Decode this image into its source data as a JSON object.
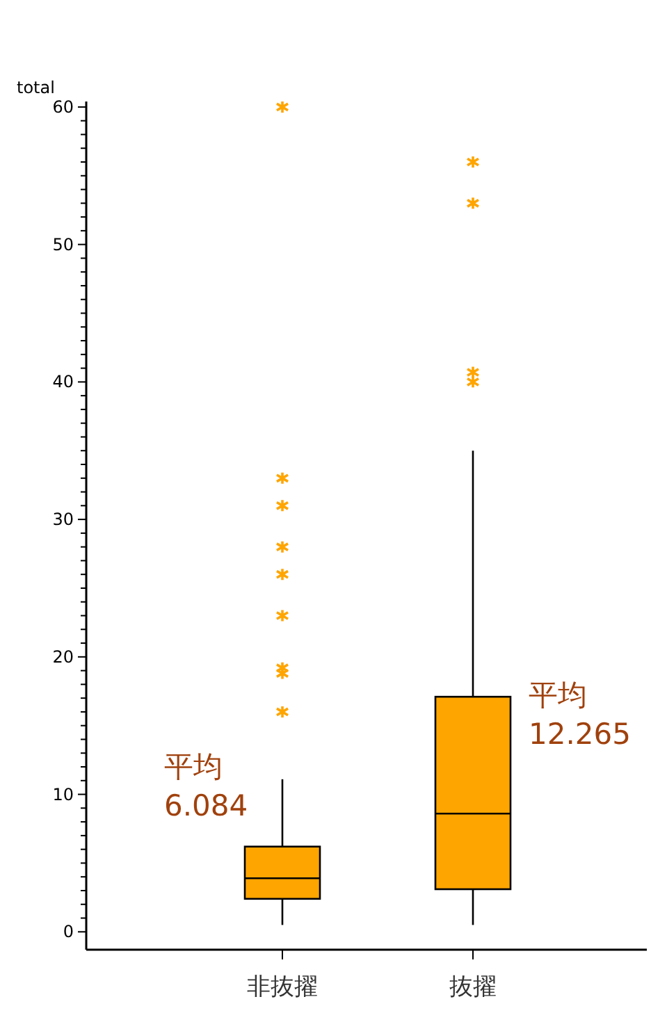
{
  "chart_data": {
    "type": "box",
    "ylabel": "total",
    "categories": [
      "非抜擢",
      "抜擢"
    ],
    "color": "#ffa500",
    "boxes": [
      {
        "low": 0.5,
        "q1": 2.4,
        "median": 3.9,
        "q3": 6.2,
        "high": 11.1,
        "outliers": [
          16,
          18.8,
          19.2,
          23,
          26,
          28,
          31,
          33,
          60
        ]
      },
      {
        "low": 0.5,
        "q1": 3.1,
        "median": 8.6,
        "q3": 17.1,
        "high": 35,
        "outliers": [
          40,
          40.7,
          53,
          56
        ]
      }
    ],
    "ylim": [
      -1.3,
      60.4
    ],
    "yticks": [
      0,
      {
        "value": 1,
        "label": null
      },
      {
        "value": 2,
        "label": null
      },
      {
        "value": 3,
        "label": null
      },
      {
        "value": 4,
        "label": null
      },
      {
        "value": 5,
        "label": null
      },
      {
        "value": 6,
        "label": null
      },
      {
        "value": 7,
        "label": null
      },
      {
        "value": 8,
        "label": null
      },
      {
        "value": 9,
        "label": null
      },
      10,
      {
        "value": 11,
        "label": null
      },
      {
        "value": 12,
        "label": null
      },
      {
        "value": 13,
        "label": null
      },
      {
        "value": 14,
        "label": null
      },
      {
        "value": 15,
        "label": null
      },
      {
        "value": 16,
        "label": null
      },
      {
        "value": 17,
        "label": null
      },
      {
        "value": 18,
        "label": null
      },
      {
        "value": 19,
        "label": null
      },
      20,
      {
        "value": 21,
        "label": null
      },
      {
        "value": 22,
        "label": null
      },
      {
        "value": 23,
        "label": null
      },
      {
        "value": 24,
        "label": null
      },
      {
        "value": 25,
        "label": null
      },
      {
        "value": 26,
        "label": null
      },
      {
        "value": 27,
        "label": null
      },
      {
        "value": 28,
        "label": null
      },
      {
        "value": 29,
        "label": null
      },
      30,
      {
        "value": 31,
        "label": null
      },
      {
        "value": 32,
        "label": null
      },
      {
        "value": 33,
        "label": null
      },
      {
        "value": 34,
        "label": null
      },
      {
        "value": 35,
        "label": null
      },
      {
        "value": 36,
        "label": null
      },
      {
        "value": 37,
        "label": null
      },
      {
        "value": 38,
        "label": null
      },
      {
        "value": 39,
        "label": null
      },
      40,
      {
        "value": 41,
        "label": null
      },
      {
        "value": 42,
        "label": null
      },
      {
        "value": 43,
        "label": null
      },
      {
        "value": 44,
        "label": null
      },
      {
        "value": 45,
        "label": null
      },
      {
        "value": 46,
        "label": null
      },
      {
        "value": 47,
        "label": null
      },
      {
        "value": 48,
        "label": null
      },
      {
        "value": 49,
        "label": null
      },
      50,
      {
        "value": 51,
        "label": null
      },
      {
        "value": 52,
        "label": null
      },
      {
        "value": 53,
        "label": null
      },
      {
        "value": 54,
        "label": null
      },
      {
        "value": 55,
        "label": null
      },
      {
        "value": 56,
        "label": null
      },
      {
        "value": 57,
        "label": null
      },
      {
        "value": 58,
        "label": null
      },
      {
        "value": 59,
        "label": null
      },
      60
    ],
    "annotations": [
      "平均\n6.084",
      "平均\n12.265"
    ],
    "grid": false
  }
}
